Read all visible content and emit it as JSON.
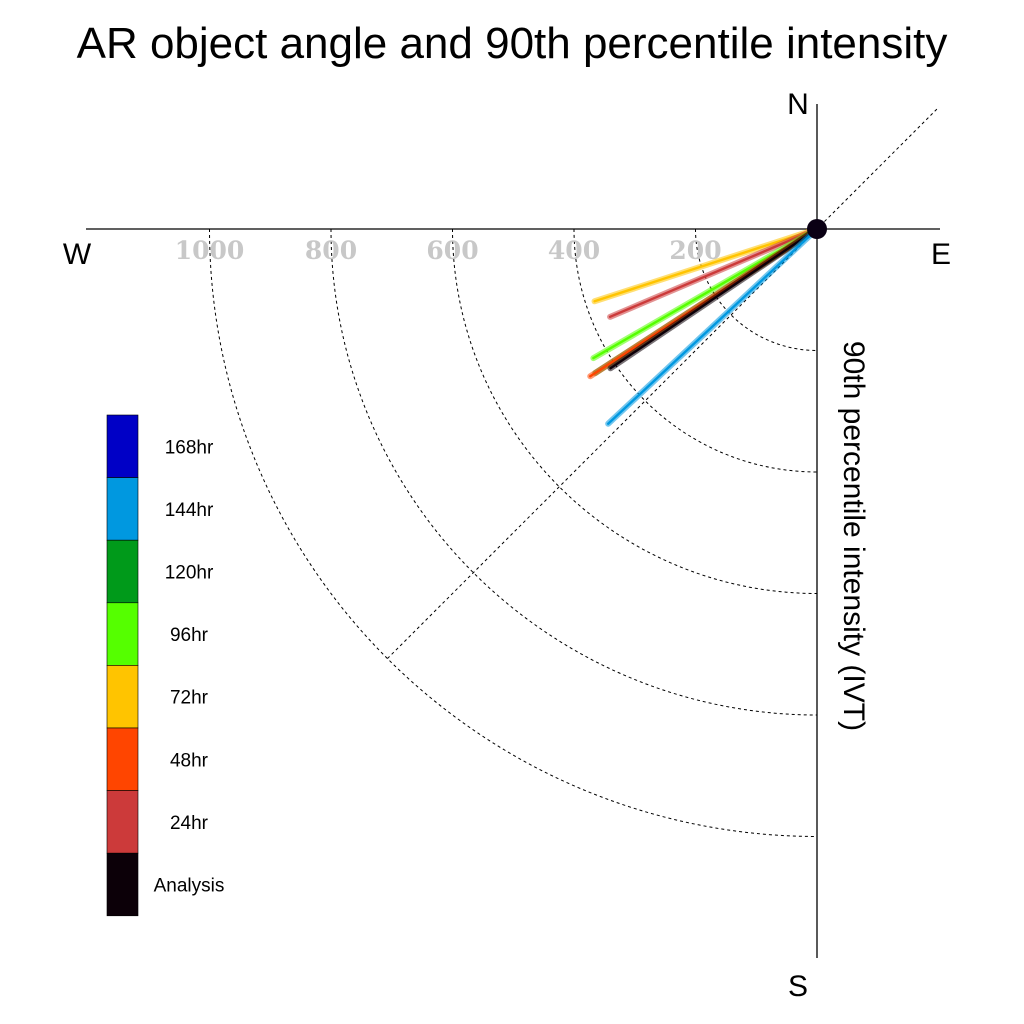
{
  "chart_data": {
    "type": "polar-vector",
    "title": "AR object angle and 90th percentile intensity",
    "ylabel": "90th percentile intensity (IVT)",
    "compass": {
      "north": "N",
      "south": "S",
      "east": "E",
      "west": "W"
    },
    "radial_ticks": [
      "200",
      "400",
      "600",
      "800",
      "1000"
    ],
    "radial_tick_values": [
      200,
      400,
      600,
      800,
      1000
    ],
    "rlim": [
      0,
      1200
    ],
    "angle_convention": "degrees clockwise from North",
    "series": [
      {
        "name": "72hr",
        "color": "#ffc400",
        "angle_deg": 252,
        "intensity": 385
      },
      {
        "name": "24hr",
        "color": "#cc3a3a",
        "angle_deg": 247,
        "intensity": 370
      },
      {
        "name": "96hr",
        "color": "#55ff00",
        "angle_deg": 240,
        "intensity": 425
      },
      {
        "name": "120hr",
        "color": "#009a1a",
        "angle_deg": 237,
        "intensity": 435
      },
      {
        "name": "48hr",
        "color": "#ff4500",
        "angle_deg": 237,
        "intensity": 445
      },
      {
        "name": "Analysis",
        "color": "#0c0008",
        "angle_deg": 236,
        "intensity": 410
      },
      {
        "name": "144hr",
        "color": "#0098e0",
        "angle_deg": 227,
        "intensity": 470
      }
    ],
    "legend": [
      {
        "label": "168hr",
        "color": "#0000c6"
      },
      {
        "label": "144hr",
        "color": "#0098e0"
      },
      {
        "label": "120hr",
        "color": "#009a1a"
      },
      {
        "label": "96hr",
        "color": "#55ff00"
      },
      {
        "label": "72hr",
        "color": "#ffc400"
      },
      {
        "label": "48hr",
        "color": "#ff4500"
      },
      {
        "label": "24hr",
        "color": "#cc3a3a"
      },
      {
        "label": "Analysis",
        "color": "#0c0008"
      }
    ],
    "legend_position": "bottom-left",
    "grid": true
  }
}
